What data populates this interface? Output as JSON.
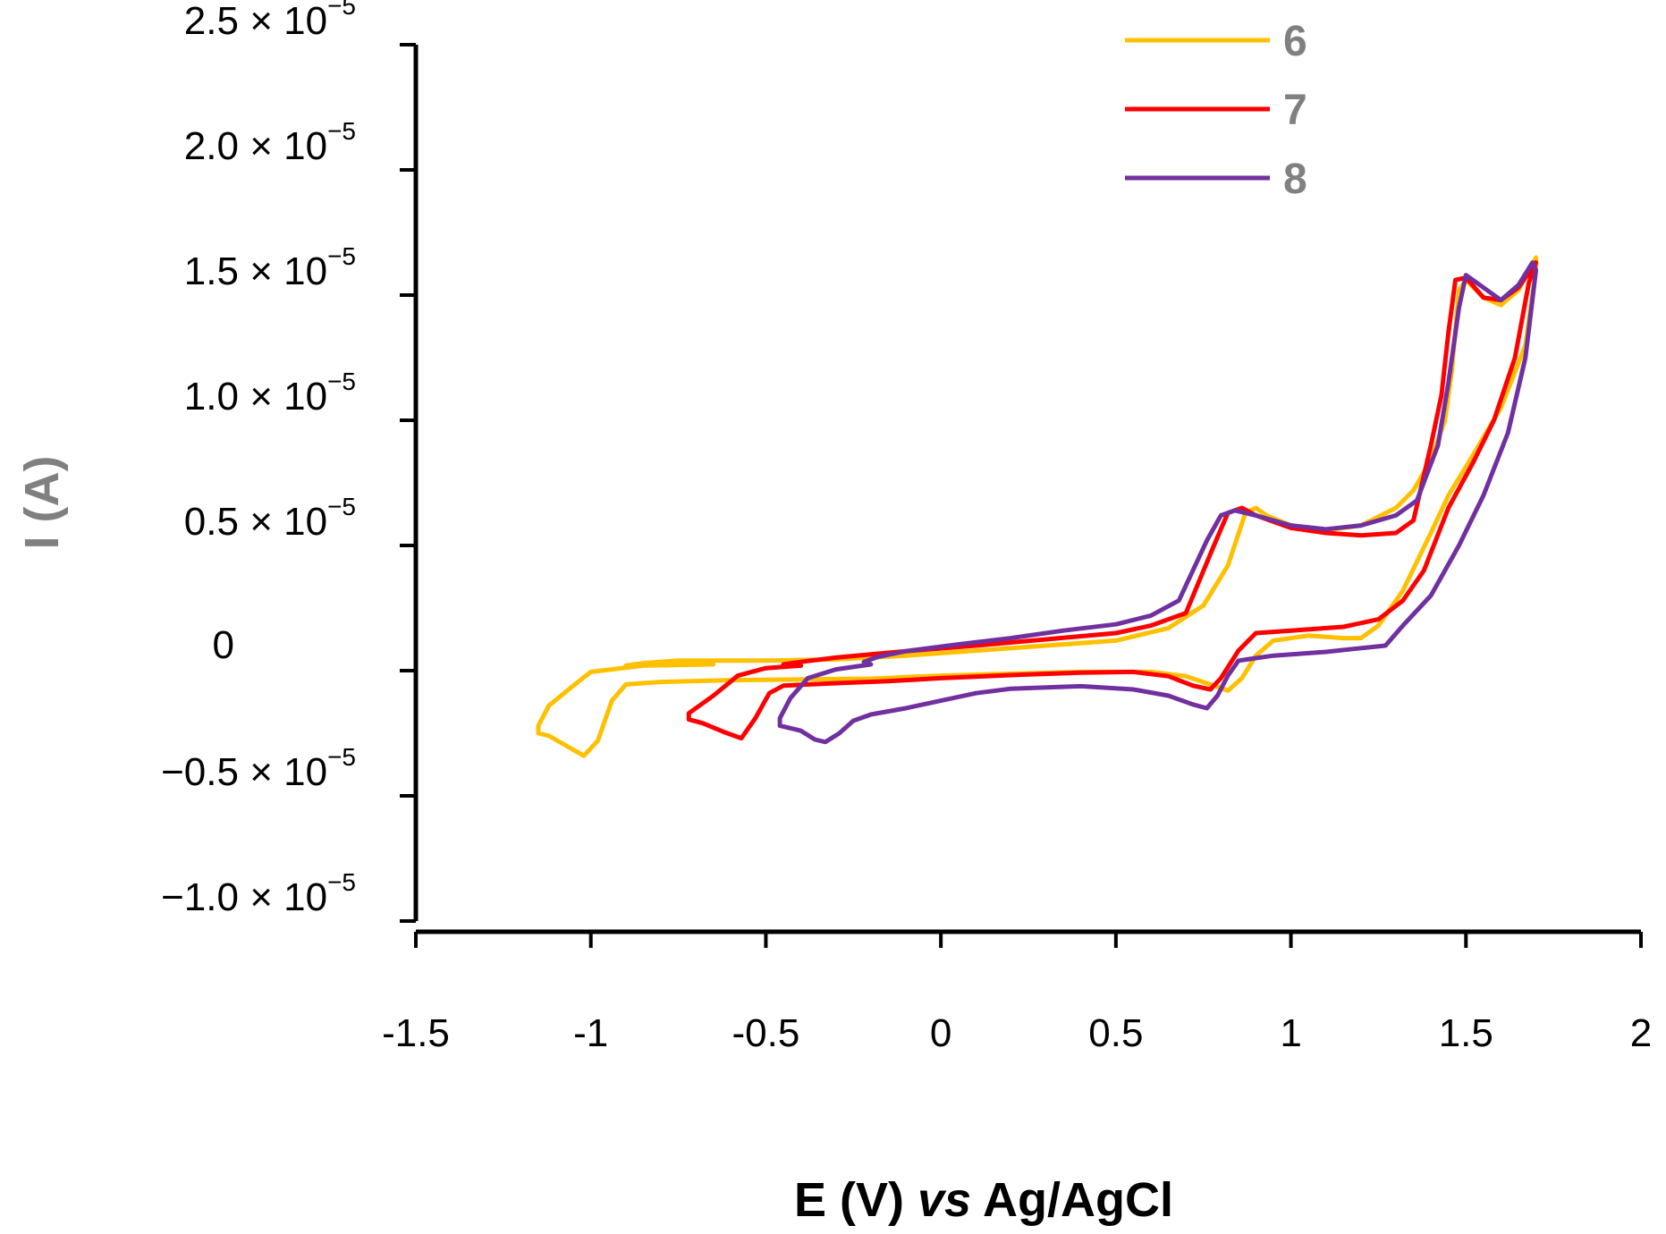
{
  "chart_data": {
    "type": "line",
    "title": "",
    "xlabel_parts": [
      "E (V) ",
      "vs",
      " Ag/AgCl"
    ],
    "ylabel": "I (A)",
    "xlim": [
      -1.5,
      2
    ],
    "ylim": [
      -1e-05,
      2.5e-05
    ],
    "grid": false,
    "legend_position": "top-right",
    "x_ticks": [
      {
        "value": -1.5,
        "label": "-1.5"
      },
      {
        "value": -1,
        "label": "-1"
      },
      {
        "value": -0.5,
        "label": "-0.5"
      },
      {
        "value": 0,
        "label": "0"
      },
      {
        "value": 0.5,
        "label": "0.5"
      },
      {
        "value": 1,
        "label": "1"
      },
      {
        "value": 1.5,
        "label": "1.5"
      },
      {
        "value": 2,
        "label": "2"
      }
    ],
    "y_ticks": [
      {
        "value": 2.5e-05,
        "mantissa": "2.5 × 10",
        "exponent": "−5"
      },
      {
        "value": 2e-05,
        "mantissa": "2.0 × 10",
        "exponent": "−5"
      },
      {
        "value": 1.5e-05,
        "mantissa": "1.5 × 10",
        "exponent": "−5"
      },
      {
        "value": 1e-05,
        "mantissa": "1.0 × 10",
        "exponent": "−5"
      },
      {
        "value": 5e-06,
        "mantissa": "0.5 × 10",
        "exponent": "−5"
      },
      {
        "value": 0,
        "mantissa": "0",
        "exponent": ""
      },
      {
        "value": -5e-06,
        "mantissa": "−0.5 × 10",
        "exponent": "−5"
      },
      {
        "value": -1e-05,
        "mantissa": "−1.0 × 10",
        "exponent": "−5"
      }
    ],
    "series": [
      {
        "name": "6",
        "color": "#FFC000",
        "points": [
          [
            -0.65,
            0.25
          ],
          [
            -0.85,
            0.2
          ],
          [
            -1.0,
            -0.05
          ],
          [
            -1.05,
            -0.6
          ],
          [
            -1.12,
            -1.4
          ],
          [
            -1.15,
            -2.2
          ],
          [
            -1.15,
            -2.5
          ],
          [
            -1.12,
            -2.6
          ],
          [
            -1.07,
            -3.0
          ],
          [
            -1.02,
            -3.4
          ],
          [
            -0.98,
            -2.8
          ],
          [
            -0.94,
            -1.2
          ],
          [
            -0.9,
            -0.55
          ],
          [
            -0.8,
            -0.45
          ],
          [
            -0.6,
            -0.38
          ],
          [
            -0.4,
            -0.35
          ],
          [
            -0.2,
            -0.32
          ],
          [
            0.0,
            -0.2
          ],
          [
            0.2,
            -0.12
          ],
          [
            0.4,
            -0.05
          ],
          [
            0.6,
            -0.05
          ],
          [
            0.7,
            -0.22
          ],
          [
            0.78,
            -0.6
          ],
          [
            0.82,
            -0.8
          ],
          [
            0.86,
            -0.3
          ],
          [
            0.9,
            0.6
          ],
          [
            0.95,
            1.2
          ],
          [
            1.05,
            1.4
          ],
          [
            1.15,
            1.3
          ],
          [
            1.2,
            1.3
          ],
          [
            1.25,
            1.8
          ],
          [
            1.32,
            3.2
          ],
          [
            1.4,
            5.5
          ],
          [
            1.45,
            7.0
          ],
          [
            1.52,
            8.6
          ],
          [
            1.6,
            10.5
          ],
          [
            1.67,
            13.0
          ],
          [
            1.7,
            16.0
          ],
          [
            1.7,
            16.5
          ],
          [
            1.65,
            15.2
          ],
          [
            1.6,
            14.6
          ],
          [
            1.55,
            14.9
          ],
          [
            1.5,
            15.6
          ],
          [
            1.48,
            15.2
          ],
          [
            1.46,
            12.0
          ],
          [
            1.44,
            10.0
          ],
          [
            1.4,
            8.4
          ],
          [
            1.35,
            7.2
          ],
          [
            1.3,
            6.5
          ],
          [
            1.2,
            5.8
          ],
          [
            1.1,
            5.6
          ],
          [
            1.0,
            5.8
          ],
          [
            0.93,
            6.2
          ],
          [
            0.9,
            6.5
          ],
          [
            0.87,
            6.3
          ],
          [
            0.82,
            4.2
          ],
          [
            0.75,
            2.6
          ],
          [
            0.65,
            1.7
          ],
          [
            0.5,
            1.2
          ],
          [
            0.3,
            1.0
          ],
          [
            0.1,
            0.8
          ],
          [
            -0.1,
            0.6
          ],
          [
            -0.3,
            0.45
          ],
          [
            -0.5,
            0.4
          ],
          [
            -0.65,
            0.4
          ],
          [
            -0.75,
            0.4
          ],
          [
            -0.85,
            0.3
          ],
          [
            -0.9,
            0.2
          ]
        ]
      },
      {
        "name": "7",
        "color": "#FF0000",
        "points": [
          [
            -0.4,
            0.2
          ],
          [
            -0.5,
            0.1
          ],
          [
            -0.58,
            -0.2
          ],
          [
            -0.65,
            -1.0
          ],
          [
            -0.72,
            -1.7
          ],
          [
            -0.72,
            -1.95
          ],
          [
            -0.68,
            -2.1
          ],
          [
            -0.62,
            -2.45
          ],
          [
            -0.57,
            -2.7
          ],
          [
            -0.53,
            -1.9
          ],
          [
            -0.49,
            -0.9
          ],
          [
            -0.45,
            -0.6
          ],
          [
            -0.3,
            -0.5
          ],
          [
            -0.15,
            -0.42
          ],
          [
            0.0,
            -0.3
          ],
          [
            0.2,
            -0.18
          ],
          [
            0.4,
            -0.08
          ],
          [
            0.55,
            -0.05
          ],
          [
            0.65,
            -0.22
          ],
          [
            0.72,
            -0.6
          ],
          [
            0.77,
            -0.75
          ],
          [
            0.8,
            -0.3
          ],
          [
            0.85,
            0.8
          ],
          [
            0.9,
            1.5
          ],
          [
            1.0,
            1.6
          ],
          [
            1.15,
            1.75
          ],
          [
            1.25,
            2.05
          ],
          [
            1.32,
            2.8
          ],
          [
            1.38,
            4.0
          ],
          [
            1.45,
            6.5
          ],
          [
            1.52,
            8.3
          ],
          [
            1.58,
            10.0
          ],
          [
            1.64,
            12.5
          ],
          [
            1.68,
            15.5
          ],
          [
            1.7,
            16.3
          ],
          [
            1.65,
            15.3
          ],
          [
            1.6,
            14.8
          ],
          [
            1.55,
            14.9
          ],
          [
            1.5,
            15.7
          ],
          [
            1.47,
            15.6
          ],
          [
            1.45,
            13.5
          ],
          [
            1.43,
            11.0
          ],
          [
            1.4,
            9.0
          ],
          [
            1.35,
            6.0
          ],
          [
            1.3,
            5.5
          ],
          [
            1.2,
            5.4
          ],
          [
            1.1,
            5.5
          ],
          [
            1.0,
            5.7
          ],
          [
            0.9,
            6.2
          ],
          [
            0.86,
            6.5
          ],
          [
            0.82,
            6.3
          ],
          [
            0.78,
            5.0
          ],
          [
            0.7,
            2.3
          ],
          [
            0.6,
            1.8
          ],
          [
            0.5,
            1.5
          ],
          [
            0.3,
            1.25
          ],
          [
            0.1,
            1.0
          ],
          [
            -0.1,
            0.78
          ],
          [
            -0.2,
            0.65
          ],
          [
            -0.3,
            0.52
          ],
          [
            -0.4,
            0.35
          ],
          [
            -0.45,
            0.25
          ]
        ]
      },
      {
        "name": "8",
        "color": "#7030A0",
        "points": [
          [
            -0.2,
            0.25
          ],
          [
            -0.3,
            0.05
          ],
          [
            -0.38,
            -0.3
          ],
          [
            -0.43,
            -1.1
          ],
          [
            -0.46,
            -1.9
          ],
          [
            -0.46,
            -2.2
          ],
          [
            -0.4,
            -2.4
          ],
          [
            -0.36,
            -2.75
          ],
          [
            -0.33,
            -2.85
          ],
          [
            -0.29,
            -2.5
          ],
          [
            -0.25,
            -2.0
          ],
          [
            -0.2,
            -1.75
          ],
          [
            -0.1,
            -1.5
          ],
          [
            0.0,
            -1.2
          ],
          [
            0.1,
            -0.9
          ],
          [
            0.2,
            -0.72
          ],
          [
            0.4,
            -0.62
          ],
          [
            0.55,
            -0.75
          ],
          [
            0.65,
            -1.0
          ],
          [
            0.72,
            -1.35
          ],
          [
            0.76,
            -1.5
          ],
          [
            0.79,
            -1.0
          ],
          [
            0.82,
            -0.2
          ],
          [
            0.85,
            0.4
          ],
          [
            0.95,
            0.6
          ],
          [
            1.1,
            0.75
          ],
          [
            1.2,
            0.9
          ],
          [
            1.27,
            1.0
          ],
          [
            1.32,
            1.8
          ],
          [
            1.4,
            3.0
          ],
          [
            1.48,
            5.0
          ],
          [
            1.55,
            7.0
          ],
          [
            1.62,
            9.5
          ],
          [
            1.67,
            12.5
          ],
          [
            1.7,
            16.0
          ],
          [
            1.69,
            16.3
          ],
          [
            1.65,
            15.4
          ],
          [
            1.6,
            14.8
          ],
          [
            1.55,
            15.3
          ],
          [
            1.5,
            15.8
          ],
          [
            1.48,
            14.5
          ],
          [
            1.45,
            11.5
          ],
          [
            1.42,
            9.0
          ],
          [
            1.36,
            6.8
          ],
          [
            1.3,
            6.2
          ],
          [
            1.2,
            5.8
          ],
          [
            1.1,
            5.65
          ],
          [
            1.0,
            5.8
          ],
          [
            0.9,
            6.2
          ],
          [
            0.84,
            6.4
          ],
          [
            0.8,
            6.2
          ],
          [
            0.76,
            5.2
          ],
          [
            0.68,
            2.8
          ],
          [
            0.6,
            2.2
          ],
          [
            0.5,
            1.85
          ],
          [
            0.35,
            1.6
          ],
          [
            0.2,
            1.3
          ],
          [
            0.05,
            1.05
          ],
          [
            -0.1,
            0.78
          ],
          [
            -0.18,
            0.55
          ],
          [
            -0.22,
            0.35
          ]
        ]
      }
    ]
  }
}
